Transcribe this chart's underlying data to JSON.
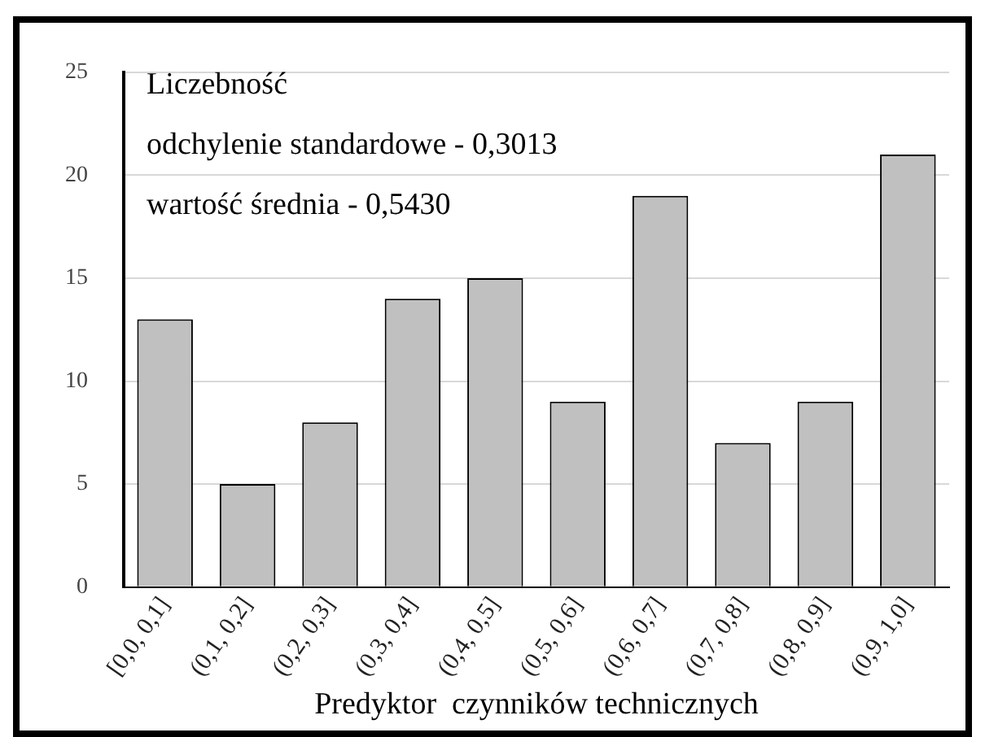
{
  "chart_data": {
    "type": "bar",
    "xlabel": "Predyktor  czynników technicznych",
    "annotations": [
      "Liczebność",
      "odchylenie standardowe - 0,3013",
      "wartość średnia - 0,5430"
    ],
    "categories": [
      "[0,0, 0,1]",
      "(0,1, 0,2]",
      "(0,2, 0,3]",
      "(0,3, 0,4]",
      "(0,4, 0,5]",
      "(0,5, 0,6]",
      "(0,6, 0,7]",
      "(0,7, 0,8]",
      "(0,8, 0,9]",
      "(0,9, 1,0]"
    ],
    "values": [
      13,
      5,
      8,
      14,
      15,
      9,
      19,
      7,
      9,
      21
    ],
    "color": "#c0c0c0",
    "ylim": [
      0,
      25
    ],
    "yticks": [
      0,
      5,
      10,
      15,
      20,
      25
    ],
    "grid": "y",
    "legend": false
  }
}
